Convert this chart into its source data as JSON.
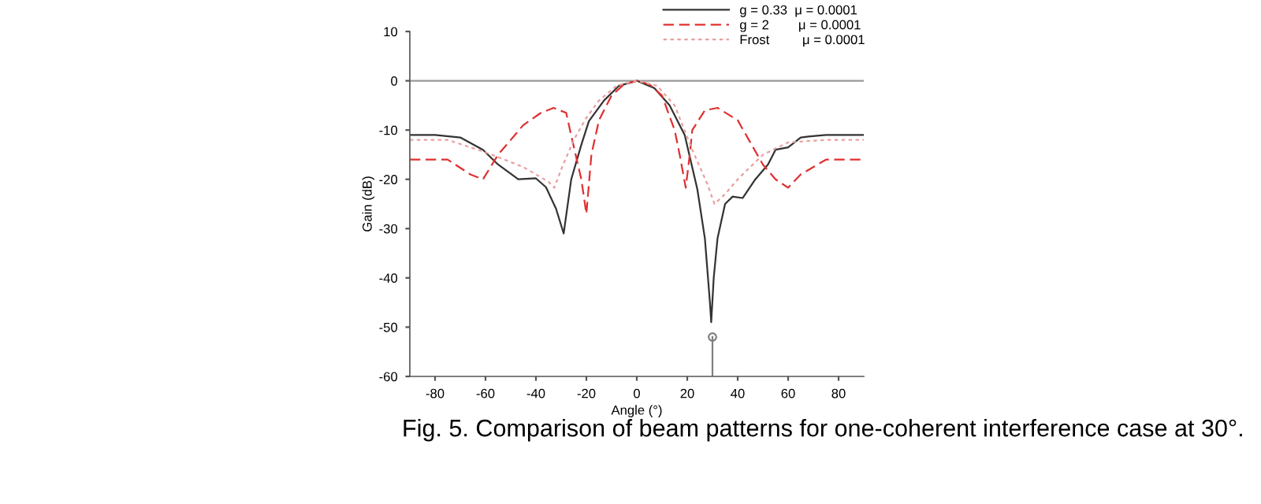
{
  "chart_data": {
    "type": "line",
    "xlabel": "Angle (°)",
    "ylabel": "Gain (dB)",
    "xlim": [
      -90,
      90
    ],
    "ylim": [
      -60,
      10
    ],
    "xticks": [
      -80,
      -60,
      -40,
      -20,
      0,
      20,
      40,
      60,
      80
    ],
    "yticks": [
      -60,
      -50,
      -40,
      -30,
      -20,
      -10,
      0,
      10
    ],
    "grid": false,
    "legend": "top right",
    "marker": "none",
    "series": [
      {
        "name": "g = 0.33  μ = 0.0001",
        "color": "#333333",
        "line_style": "solid",
        "x": [
          -90,
          -80,
          -70,
          -61,
          -55,
          -47,
          -40,
          -36,
          -32,
          -29,
          -26,
          -22,
          -19,
          -13,
          -7,
          0,
          7,
          13,
          19,
          24,
          27,
          29,
          29.5,
          30.5,
          32,
          35,
          38,
          42,
          47,
          52,
          55,
          60,
          65,
          68,
          75,
          90
        ],
        "values": [
          -11,
          -11,
          -11.5,
          -14,
          -17,
          -20,
          -19.8,
          -21.6,
          -26,
          -31,
          -20,
          -13,
          -8.2,
          -4,
          -1,
          0,
          -1.5,
          -5,
          -11,
          -22,
          -32,
          -45,
          -49,
          -40,
          -32,
          -25,
          -23.5,
          -23.8,
          -20,
          -17,
          -14,
          -13.5,
          -11.5,
          -11.3,
          -11,
          -11
        ]
      },
      {
        "name": "g = 2        μ = 0.0001",
        "color": "#e03030",
        "line_style": "dashed",
        "x": [
          -90,
          -75,
          -66,
          -61,
          -55,
          -45,
          -38,
          -33,
          -28,
          -25.6,
          -22,
          -20,
          -18,
          -15,
          -10,
          -5,
          0,
          5,
          10,
          15,
          17,
          19.4,
          21,
          22,
          27,
          32,
          40,
          50,
          55,
          60,
          65,
          75,
          90
        ],
        "values": [
          -16,
          -16,
          -19,
          -20,
          -15,
          -9,
          -6.5,
          -5.5,
          -6.5,
          -12,
          -20,
          -27,
          -15,
          -8,
          -3,
          -0.7,
          0,
          -0.7,
          -3,
          -10,
          -15,
          -21.7,
          -15,
          -10,
          -6,
          -5.5,
          -8,
          -17,
          -20,
          -21.7,
          -19,
          -16,
          -16
        ]
      },
      {
        "name": "Frost         μ = 0.0001",
        "color": "#e8a0a0",
        "line_style": "dotted",
        "x": [
          -90,
          -75,
          -60,
          -45,
          -35,
          -32.7,
          -30,
          -25,
          -20,
          -15,
          -8,
          0,
          8,
          15,
          22,
          28,
          30.8,
          35,
          40,
          50,
          60,
          75,
          90
        ],
        "values": [
          -12,
          -12,
          -14.5,
          -17.5,
          -20.5,
          -21.7,
          -18,
          -12,
          -7.5,
          -4,
          -1,
          0,
          -1,
          -5,
          -14,
          -21,
          -25,
          -23,
          -20,
          -15,
          -12.5,
          -12,
          -12
        ]
      },
      {
        "type": "line",
        "color": "#808080",
        "line_style": "solid",
        "x": [
          30,
          30
        ],
        "values": [
          -60,
          -52
        ]
      },
      {
        "type": "scatter",
        "color": "#808080",
        "marker": "circle",
        "x": [
          30
        ],
        "values": [
          -52
        ]
      }
    ],
    "ref_lines": [
      {
        "axis": "y",
        "value": 0,
        "color": "#999999"
      }
    ],
    "annotations": [
      "Fig. 5. Comparison of beam patterns for one-coherent interference case at 30°."
    ]
  }
}
